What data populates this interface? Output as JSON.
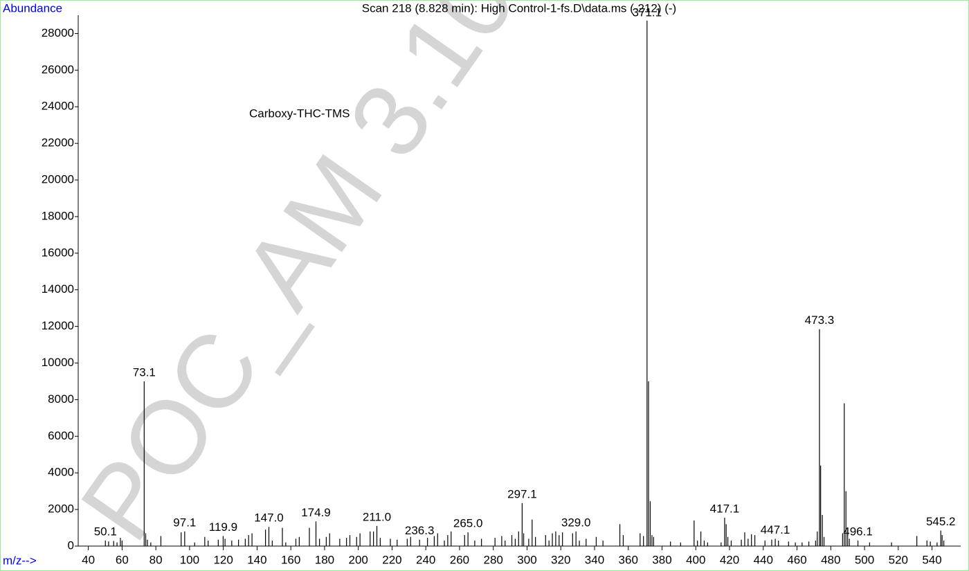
{
  "chart_data": {
    "type": "stem",
    "title": "Scan 218 (8.828 min): High Control-1-fs.D\\data.ms (-212) (-)",
    "y_label": "Abundance",
    "x_label": "m/z-->",
    "annotation": "Carboxy-THC-TMS",
    "watermark": "POC_AM 3.10.",
    "color": "#000000",
    "label_color": "#0000e6",
    "xlim": [
      34,
      557
    ],
    "ylim": [
      0,
      29000
    ],
    "xticks": [
      40,
      60,
      80,
      100,
      120,
      140,
      160,
      180,
      200,
      220,
      240,
      260,
      280,
      300,
      320,
      340,
      360,
      380,
      400,
      420,
      440,
      460,
      480,
      500,
      520,
      540
    ],
    "yticks": [
      0,
      2000,
      4000,
      6000,
      8000,
      10000,
      12000,
      14000,
      16000,
      18000,
      20000,
      22000,
      24000,
      26000,
      28000
    ],
    "x": [
      50.1,
      52,
      55,
      57,
      59,
      60,
      73.1,
      74,
      75,
      77,
      83,
      95,
      97.1,
      103,
      109,
      111,
      117,
      119.9,
      121,
      125,
      129,
      133,
      135,
      137,
      145,
      147.0,
      149,
      155,
      157,
      163,
      165,
      171,
      174.9,
      177,
      181,
      183,
      189,
      193,
      195,
      199,
      201,
      207,
      209,
      211.0,
      213,
      219,
      223,
      229,
      231,
      236.3,
      241,
      245,
      247,
      251,
      253,
      255,
      263,
      265.0,
      269,
      273,
      281,
      285,
      287,
      291,
      293,
      295,
      297.1,
      298,
      301,
      303,
      305,
      311,
      313,
      315,
      317,
      319,
      321,
      327,
      329.0,
      331,
      335,
      341,
      345,
      355,
      357,
      367,
      369,
      371.1,
      372,
      373,
      374,
      375,
      385,
      391,
      399,
      401,
      403,
      405,
      407,
      415,
      417.1,
      418,
      419,
      421,
      427,
      429,
      431,
      433,
      435,
      441,
      445,
      447.1,
      449,
      455,
      459,
      463,
      467,
      471,
      472,
      473.3,
      474,
      475,
      476,
      487,
      488,
      489,
      490,
      491,
      496.1,
      503,
      516,
      531,
      537,
      539,
      543,
      545.2,
      546,
      547
    ],
    "values": [
      300,
      250,
      280,
      200,
      450,
      300,
      9000,
      700,
      350,
      200,
      550,
      750,
      800,
      200,
      500,
      300,
      350,
      550,
      400,
      300,
      350,
      400,
      600,
      700,
      900,
      1050,
      300,
      1000,
      200,
      400,
      500,
      1000,
      1350,
      400,
      500,
      700,
      400,
      450,
      600,
      500,
      700,
      800,
      800,
      1100,
      450,
      400,
      350,
      400,
      500,
      350,
      450,
      550,
      700,
      300,
      600,
      800,
      600,
      750,
      300,
      400,
      450,
      550,
      300,
      600,
      400,
      800,
      2350,
      700,
      400,
      1450,
      500,
      600,
      300,
      700,
      800,
      600,
      750,
      700,
      800,
      300,
      400,
      500,
      300,
      1200,
      600,
      700,
      550,
      28700,
      9000,
      2450,
      600,
      500,
      250,
      200,
      1400,
      300,
      800,
      300,
      200,
      200,
      1550,
      1200,
      500,
      300,
      350,
      750,
      400,
      650,
      600,
      300,
      350,
      400,
      300,
      250,
      200,
      200,
      250,
      300,
      800,
      11850,
      4400,
      1700,
      500,
      700,
      7800,
      3000,
      900,
      400,
      300,
      200,
      200,
      550,
      300,
      250,
      200,
      850,
      600,
      300
    ],
    "x_labels": [
      "50.1",
      null,
      null,
      null,
      null,
      null,
      "73.1",
      null,
      null,
      null,
      null,
      null,
      "97.1",
      null,
      null,
      null,
      null,
      "119.9",
      null,
      null,
      null,
      null,
      null,
      null,
      null,
      "147.0",
      null,
      null,
      null,
      null,
      null,
      null,
      "174.9",
      null,
      null,
      null,
      null,
      null,
      null,
      null,
      null,
      null,
      null,
      "211.0",
      null,
      null,
      null,
      null,
      null,
      "236.3",
      null,
      null,
      null,
      null,
      null,
      null,
      null,
      "265.0",
      null,
      null,
      null,
      null,
      null,
      null,
      null,
      null,
      "297.1",
      null,
      null,
      null,
      null,
      null,
      null,
      null,
      null,
      null,
      null,
      null,
      "329.0",
      null,
      null,
      null,
      null,
      null,
      null,
      null,
      null,
      "371.1",
      null,
      null,
      null,
      null,
      null,
      null,
      null,
      null,
      null,
      null,
      null,
      null,
      "417.1",
      null,
      null,
      null,
      null,
      null,
      null,
      null,
      null,
      null,
      null,
      "447.1",
      null,
      null,
      null,
      null,
      null,
      null,
      null,
      "473.3",
      null,
      null,
      null,
      null,
      null,
      null,
      null,
      null,
      "496.1",
      null,
      null,
      null,
      null,
      null,
      null,
      "545.2",
      null,
      null
    ]
  }
}
